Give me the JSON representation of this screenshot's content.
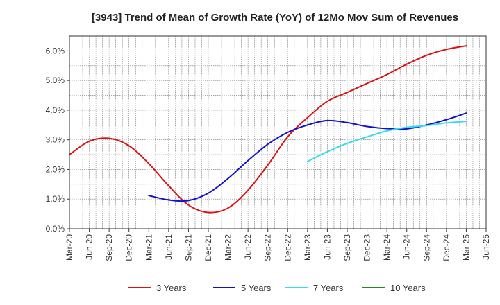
{
  "chart_data": {
    "type": "line",
    "title": "[3943]  Trend of Mean of Growth Rate (YoY) of 12Mo Mov Sum of Revenues",
    "xlabel": "",
    "ylabel": "",
    "ylim": [
      0,
      6.5
    ],
    "yticks": [
      "0.0%",
      "1.0%",
      "2.0%",
      "3.0%",
      "4.0%",
      "5.0%",
      "6.0%"
    ],
    "ytick_values": [
      0,
      1,
      2,
      3,
      4,
      5,
      6
    ],
    "x_labels": [
      "Mar-20",
      "Jun-20",
      "Sep-20",
      "Dec-20",
      "Mar-21",
      "Jun-21",
      "Sep-21",
      "Dec-21",
      "Mar-22",
      "Jun-22",
      "Sep-22",
      "Dec-22",
      "Mar-23",
      "Jun-23",
      "Sep-23",
      "Dec-23",
      "Mar-24",
      "Jun-24",
      "Sep-24",
      "Dec-24",
      "Mar-25",
      "Jun-25"
    ],
    "grid": true,
    "legend_position": "bottom",
    "series": [
      {
        "name": "3 Years",
        "color": "#dd1111",
        "start_index": 0,
        "values": [
          2.5,
          2.95,
          3.05,
          2.8,
          2.2,
          1.45,
          0.8,
          0.55,
          0.7,
          1.3,
          2.15,
          3.1,
          3.75,
          4.3,
          4.6,
          4.9,
          5.2,
          5.55,
          5.85,
          6.05,
          6.17
        ]
      },
      {
        "name": "5 Years",
        "color": "#1111cc",
        "start_index": 4,
        "values": [
          1.12,
          0.97,
          0.95,
          1.2,
          1.7,
          2.3,
          2.85,
          3.25,
          3.5,
          3.65,
          3.58,
          3.45,
          3.38,
          3.37,
          3.5,
          3.68,
          3.9
        ]
      },
      {
        "name": "7 Years",
        "color": "#33ddee",
        "start_index": 12,
        "values": [
          2.27,
          2.6,
          2.88,
          3.1,
          3.3,
          3.42,
          3.48,
          3.57,
          3.62
        ]
      },
      {
        "name": "10 Years",
        "color": "#228822",
        "start_index": 0,
        "values": []
      }
    ]
  }
}
